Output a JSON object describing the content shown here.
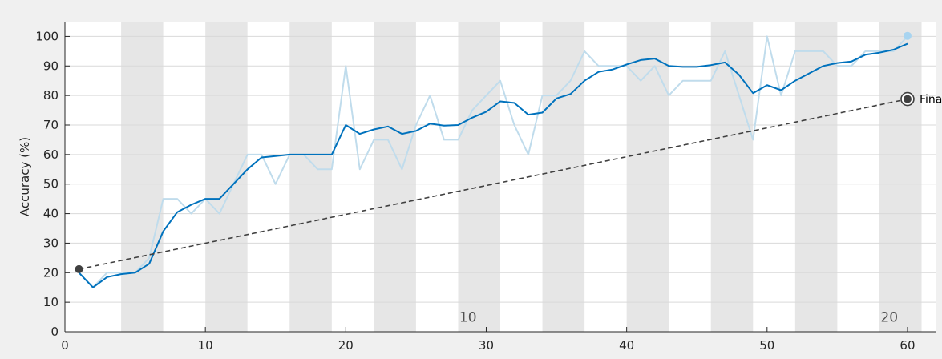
{
  "chart_data": {
    "type": "line",
    "title": "",
    "xlabel": "",
    "ylabel": "Accuracy (%)",
    "xlim": [
      0,
      62
    ],
    "ylim": [
      0,
      105
    ],
    "x_ticks": [
      0,
      10,
      20,
      30,
      40,
      50,
      60
    ],
    "y_ticks": [
      0,
      10,
      20,
      30,
      40,
      50,
      60,
      70,
      80,
      90,
      100
    ],
    "grid": "horizontal",
    "epoch_band_starts": [
      4,
      10,
      16,
      22,
      28,
      34,
      40,
      46,
      52,
      58
    ],
    "epoch_band_width": 3,
    "epoch_labels": [
      {
        "text": "10",
        "x": 28.7,
        "y": 5
      },
      {
        "text": "20",
        "x": 58.7,
        "y": 5
      }
    ],
    "series": [
      {
        "role": "raw",
        "color": "#c0dcec",
        "x": [
          1,
          2,
          3,
          4,
          5,
          6,
          7,
          8,
          9,
          10,
          11,
          12,
          13,
          14,
          15,
          16,
          17,
          18,
          19,
          20,
          21,
          22,
          23,
          24,
          25,
          26,
          27,
          28,
          29,
          30,
          31,
          32,
          33,
          34,
          35,
          36,
          37,
          38,
          39,
          40,
          41,
          42,
          43,
          44,
          45,
          46,
          47,
          48,
          49,
          50,
          51,
          52,
          53,
          54,
          55,
          56,
          57,
          58,
          59,
          60
        ],
        "y": [
          20,
          15,
          20,
          20,
          20,
          25,
          45,
          45,
          40,
          45,
          40,
          50,
          60,
          60,
          50,
          60,
          60,
          55,
          55,
          90,
          55,
          65,
          65,
          55,
          70,
          80,
          65,
          65,
          75,
          80,
          85,
          70,
          60,
          80,
          80,
          85,
          95,
          90,
          90,
          90,
          85,
          90,
          80,
          85,
          85,
          85,
          95,
          80,
          65,
          100,
          80,
          95,
          95,
          95,
          90,
          90,
          95,
          95,
          95,
          100
        ]
      },
      {
        "role": "smoothed",
        "color": "#0072bd",
        "x": [
          1,
          2,
          3,
          4,
          5,
          6,
          7,
          8,
          9,
          10,
          11,
          12,
          13,
          14,
          15,
          16,
          17,
          18,
          19,
          20,
          21,
          22,
          23,
          24,
          25,
          26,
          27,
          28,
          29,
          30,
          31,
          32,
          33,
          34,
          35,
          36,
          37,
          38,
          39,
          40,
          41,
          42,
          43,
          44,
          45,
          46,
          47,
          48,
          49,
          50,
          51,
          52,
          53,
          54,
          55,
          56,
          57,
          58,
          59,
          60
        ],
        "y": [
          20,
          15,
          18.5,
          19.5,
          20,
          23,
          34,
          40.5,
          43,
          45,
          45,
          50,
          55,
          59,
          59.5,
          60,
          60,
          60,
          60,
          70,
          67,
          68.5,
          69.5,
          67,
          68,
          70.5,
          69.8,
          70,
          72.5,
          74.5,
          78,
          77.5,
          73.5,
          74.2,
          79,
          80.5,
          85,
          88,
          88.8,
          90.5,
          92,
          92.5,
          90,
          89.7,
          89.7,
          90.3,
          91.2,
          87,
          80.8,
          83.5,
          81.8,
          85,
          87.5,
          90,
          91,
          91.5,
          93.8,
          94.5,
          95.5,
          97.5
        ]
      },
      {
        "role": "trend",
        "color": "#404040",
        "x": [
          1,
          60
        ],
        "y": [
          21.2,
          78.8
        ]
      }
    ],
    "markers": [
      {
        "role": "start",
        "x": 1,
        "y": 21.2,
        "color": "#404040"
      },
      {
        "role": "raw-end",
        "x": 60,
        "y": 100.2,
        "color": "#a8d4f0"
      },
      {
        "role": "final",
        "x": 60,
        "y": 78.8,
        "color": "#404040",
        "label": "Final"
      }
    ]
  }
}
